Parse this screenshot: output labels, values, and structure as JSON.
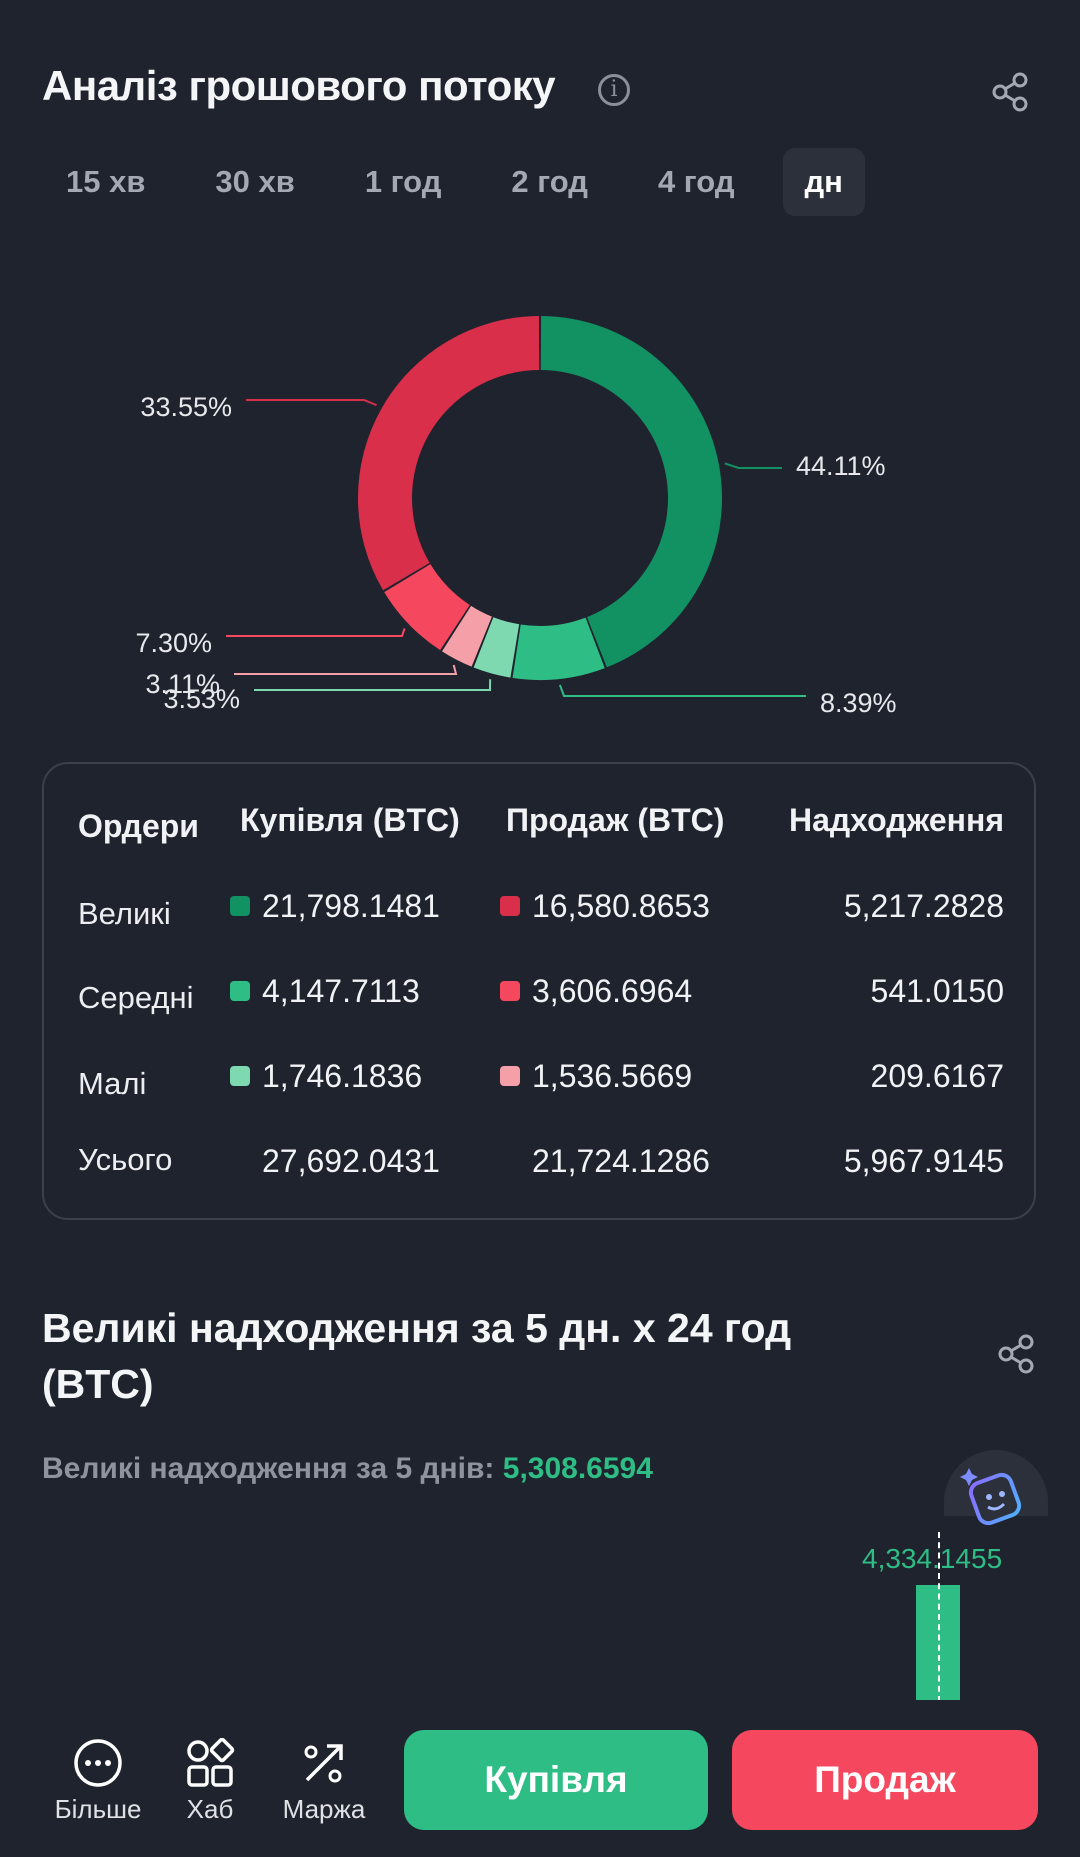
{
  "header": {
    "title": "Аналіз грошового потоку",
    "info_icon": "info-icon",
    "share_icon": "share-icon"
  },
  "tabs": [
    {
      "label": "15 хв",
      "active": false
    },
    {
      "label": "30 хв",
      "active": false
    },
    {
      "label": "1 год",
      "active": false
    },
    {
      "label": "2 год",
      "active": false
    },
    {
      "label": "4 год",
      "active": false
    },
    {
      "label": "дн",
      "active": true
    }
  ],
  "chart_data": {
    "type": "pie",
    "slices": [
      {
        "label": "44.11%",
        "value": 44.11,
        "color": "#129163"
      },
      {
        "label": "8.39%",
        "value": 8.39,
        "color": "#2ebd85"
      },
      {
        "label": "3.53%",
        "value": 3.53,
        "color": "#7fd9b0"
      },
      {
        "label": "3.11%",
        "value": 3.11,
        "color": "#f5a0a8"
      },
      {
        "label": "7.30%",
        "value": 7.3,
        "color": "#f5475d"
      },
      {
        "label": "33.55%",
        "value": 33.55,
        "color": "#d92f4b"
      }
    ]
  },
  "table": {
    "headers": [
      "Ордери",
      "Купівля (BTC)",
      "Продаж (BTC)",
      "Надходження"
    ],
    "rows": [
      {
        "label": "Великі",
        "buy": "21,798.1481",
        "sell": "16,580.8653",
        "net": "5,217.2828",
        "buy_color": "#129163",
        "sell_color": "#d92f4b"
      },
      {
        "label": "Середні",
        "buy": "4,147.7113",
        "sell": "3,606.6964",
        "net": "541.0150",
        "buy_color": "#2ebd85",
        "sell_color": "#f5475d"
      },
      {
        "label": "Малі",
        "buy": "1,746.1836",
        "sell": "1,536.5669",
        "net": "209.6167",
        "buy_color": "#7fd9b0",
        "sell_color": "#f5a0a8"
      },
      {
        "label": "Усього",
        "buy": "27,692.0431",
        "sell": "21,724.1286",
        "net": "5,967.9145"
      }
    ]
  },
  "section2": {
    "title": "Великі надходження за 5 дн. x 24 год (BTC)",
    "subtitle_label": "Великі надходження за 5 днів:",
    "subtitle_value": "5,308.6594",
    "bar_value_label": "4,334.1455",
    "share_icon": "share-icon"
  },
  "bottom_nav": {
    "more": "Більше",
    "hub": "Хаб",
    "margin": "Маржа",
    "buy_button": "Купівля",
    "sell_button": "Продаж"
  },
  "colors": {
    "buy": "#2ebd85",
    "sell": "#f5475d",
    "background": "#1f232d"
  }
}
